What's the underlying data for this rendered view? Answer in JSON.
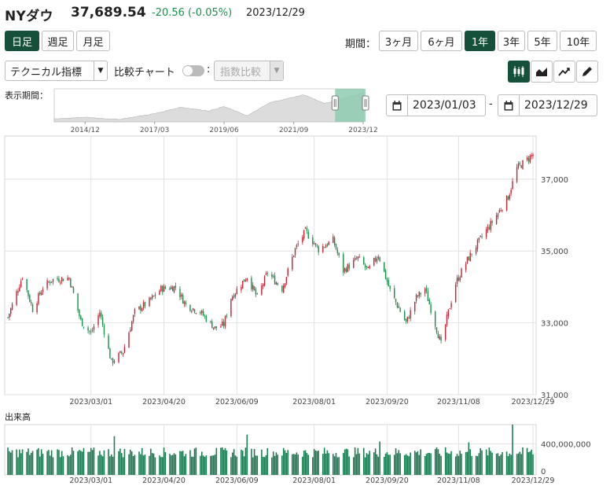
{
  "header": {
    "name": "NYダウ",
    "price": "37,689.54",
    "change": "-20.56 (-0.05%)",
    "date": "2023/12/29"
  },
  "interval_buttons": [
    "日足",
    "週足",
    "月足"
  ],
  "active_interval": "日足",
  "period": {
    "label": "期間：",
    "options": [
      "3ヶ月",
      "6ヶ月",
      "1年",
      "3年",
      "5年",
      "10年"
    ],
    "active": "1年"
  },
  "toolbar": {
    "technical_select": "テクニカル指標",
    "compare_label": "比較チャート",
    "compare_colon": ":",
    "index_compare_select": "指数比較",
    "chart_style_icons": [
      "candlestick-icon",
      "area-chart-icon",
      "line-chart-icon",
      "pen-icon"
    ]
  },
  "range": {
    "label": "表示期間：",
    "from": "2023/01/03",
    "separator": "-",
    "to": "2023/12/29",
    "navigator_ticks": [
      "2014/12",
      "2017/03",
      "2019/06",
      "2021/09",
      "2023/12"
    ]
  },
  "volume_label": "出来高",
  "colors": {
    "accent": "#14503a",
    "up": "#c0283a",
    "down": "#1e8f4e",
    "volume": "#1a7a50",
    "navigator_fill": "#dcdcdc",
    "navigator_select": "#8fcbb0"
  },
  "chart_data": [
    {
      "type": "candlestick",
      "x_ticks": [
        "2023/03/01",
        "2023/04/20",
        "2023/06/09",
        "2023/08/01",
        "2023/09/20",
        "2023/11/08",
        "2023/12/29"
      ],
      "y_ticks": [
        "31,000",
        "33,000",
        "35,000",
        "37,000"
      ],
      "ylim": [
        31000,
        38200
      ],
      "xlim": [
        "2023/01/03",
        "2023/12/29"
      ],
      "grid": true,
      "close_path": [
        [
          "2023/01/03",
          33150
        ],
        [
          "2023/01/13",
          34300
        ],
        [
          "2023/01/20",
          33380
        ],
        [
          "2023/01/27",
          33980
        ],
        [
          "2023/02/02",
          34200
        ],
        [
          "2023/02/14",
          34250
        ],
        [
          "2023/02/22",
          33050
        ],
        [
          "2023/03/01",
          32700
        ],
        [
          "2023/03/07",
          33300
        ],
        [
          "2023/03/15",
          31900
        ],
        [
          "2023/03/23",
          32200
        ],
        [
          "2023/03/31",
          33300
        ],
        [
          "2023/04/10",
          33600
        ],
        [
          "2023/04/18",
          33950
        ],
        [
          "2023/04/28",
          34000
        ],
        [
          "2023/05/05",
          33500
        ],
        [
          "2023/05/15",
          33300
        ],
        [
          "2023/05/25",
          32850
        ],
        [
          "2023/05/31",
          32950
        ],
        [
          "2023/06/05",
          33700
        ],
        [
          "2023/06/16",
          34300
        ],
        [
          "2023/06/23",
          33700
        ],
        [
          "2023/06/30",
          34400
        ],
        [
          "2023/07/10",
          33950
        ],
        [
          "2023/07/19",
          35050
        ],
        [
          "2023/07/26",
          35550
        ],
        [
          "2023/08/04",
          35050
        ],
        [
          "2023/08/14",
          35300
        ],
        [
          "2023/08/21",
          34450
        ],
        [
          "2023/08/31",
          34800
        ],
        [
          "2023/09/07",
          34450
        ],
        [
          "2023/09/14",
          34900
        ],
        [
          "2023/09/22",
          33900
        ],
        [
          "2023/10/03",
          33000
        ],
        [
          "2023/10/10",
          33700
        ],
        [
          "2023/10/16",
          33950
        ],
        [
          "2023/10/27",
          32400
        ],
        [
          "2023/11/01",
          33300
        ],
        [
          "2023/11/06",
          34100
        ],
        [
          "2023/11/14",
          34750
        ],
        [
          "2023/11/24",
          35400
        ],
        [
          "2023/12/01",
          35800
        ],
        [
          "2023/12/12",
          36500
        ],
        [
          "2023/12/18",
          37300
        ],
        [
          "2023/12/29",
          37690
        ]
      ]
    },
    {
      "type": "bar",
      "title": "出来高",
      "y_ticks": [
        "0",
        "400,000,000"
      ],
      "ylim": [
        0,
        650000000
      ],
      "x_ticks": [
        "2023/03/01",
        "2023/04/20",
        "2023/06/09",
        "2023/08/01",
        "2023/09/20",
        "2023/11/08",
        "2023/12/29"
      ],
      "typical_volume": 290000000,
      "spikes": [
        [
          "2023/03/17",
          500000000
        ],
        [
          "2023/06/16",
          520000000
        ],
        [
          "2023/09/15",
          430000000
        ],
        [
          "2023/11/15",
          420000000
        ],
        [
          "2023/12/15",
          650000000
        ]
      ]
    },
    {
      "type": "area",
      "name": "navigator",
      "x_ticks": [
        "2014/12",
        "2017/03",
        "2019/06",
        "2021/09",
        "2023/12"
      ],
      "selected_range": [
        "2023/01/03",
        "2023/12/29"
      ],
      "path": [
        [
          "2013/12",
          16500
        ],
        [
          "2014/12",
          17800
        ],
        [
          "2016/01",
          16000
        ],
        [
          "2017/03",
          20700
        ],
        [
          "2018/01",
          26000
        ],
        [
          "2018/12",
          23000
        ],
        [
          "2019/06",
          26600
        ],
        [
          "2020/03",
          19000
        ],
        [
          "2020/12",
          30000
        ],
        [
          "2021/09",
          34300
        ],
        [
          "2022/01",
          36300
        ],
        [
          "2022/09",
          29000
        ],
        [
          "2023/03",
          32500
        ],
        [
          "2023/12",
          37700
        ]
      ]
    }
  ]
}
